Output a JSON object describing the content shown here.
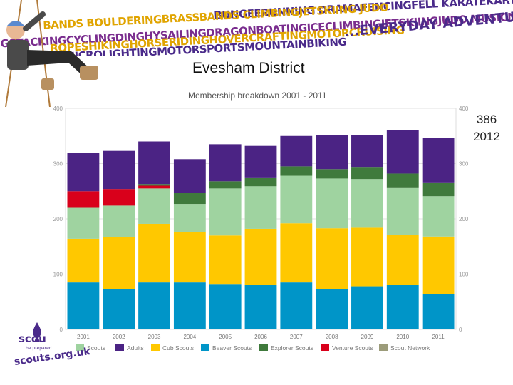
{
  "banner": {
    "lines": [
      {
        "text": "BUNGEERUNNING DRAMAFENCINGFELL KARATEKARTING OFFROADING",
        "color": "#4a2a8a"
      },
      {
        "text": "BANDS BOULDERINGBRASSBANDS CLIMBINGJETSKIING JUDO",
        "color": "#e0a400"
      },
      {
        "text": "GSTACKINGCYCLINGDINGHYSAILINGDRAGONBOATINGICECLIMBINGJETSKIINGJUDO MUSICNARROWBOATING",
        "color": "#7a2d8e"
      },
      {
        "text": "ROPESHIKINGHORSERIDINGHOVERCRAFTINGMOTORCRUISING",
        "color": "#e0a400"
      },
      {
        "text": "MICROLIGHTINGMOTORSPORTSMOUNTAINBIKING",
        "color": "#4a2a8a"
      }
    ],
    "slogan": "...EVERYDAY ADVENTURE"
  },
  "title": "Evesham District",
  "callout": {
    "value": "386",
    "year": "2012"
  },
  "footer": {
    "site": "scouts.org.uk",
    "logo_text": "scou",
    "logo_tag": "be prepared"
  },
  "colors": {
    "Scouts": "#9fd3a0",
    "Adults": "#4b2384",
    "Cub Scouts": "#ffc800",
    "Beaver Scouts": "#0095c8",
    "Explorer Scouts": "#3f7a3c",
    "Venture Scouts": "#d9001b",
    "Scout Network": "#9c9c7a"
  },
  "chart_data": {
    "type": "bar",
    "stacked": true,
    "title": "Membership breakdown 2001 - 2011",
    "xlabel": "",
    "ylabel": "",
    "ylim": [
      0,
      400
    ],
    "yticks": [
      0,
      100,
      200,
      300,
      400
    ],
    "grid": true,
    "legend_position": "bottom",
    "categories": [
      "2001",
      "2002",
      "2003",
      "2004",
      "2005",
      "2006",
      "2007",
      "2008",
      "2009",
      "2010",
      "2011"
    ],
    "series": [
      {
        "name": "Beaver Scouts",
        "values": [
          85,
          73,
          85,
          85,
          81,
          80,
          85,
          73,
          78,
          80,
          64
        ]
      },
      {
        "name": "Cub Scouts",
        "values": [
          79,
          94,
          106,
          91,
          89,
          102,
          107,
          110,
          106,
          91,
          104
        ]
      },
      {
        "name": "Scouts",
        "values": [
          56,
          57,
          64,
          51,
          85,
          77,
          86,
          90,
          88,
          86,
          73
        ]
      },
      {
        "name": "Venture Scouts",
        "values": [
          30,
          30,
          5,
          0,
          0,
          0,
          0,
          0,
          0,
          0,
          0
        ]
      },
      {
        "name": "Explorer Scouts",
        "values": [
          0,
          0,
          3,
          20,
          13,
          16,
          17,
          17,
          22,
          25,
          25
        ]
      },
      {
        "name": "Scout Network",
        "values": [
          0,
          0,
          0,
          0,
          0,
          0,
          0,
          0,
          0,
          0,
          0
        ]
      },
      {
        "name": "Adults",
        "values": [
          70,
          69,
          77,
          61,
          67,
          57,
          55,
          61,
          58,
          78,
          80
        ]
      }
    ],
    "legend": [
      "Scouts",
      "Adults",
      "Cub Scouts",
      "Beaver Scouts",
      "Explorer Scouts",
      "Venture Scouts",
      "Scout Network"
    ]
  }
}
